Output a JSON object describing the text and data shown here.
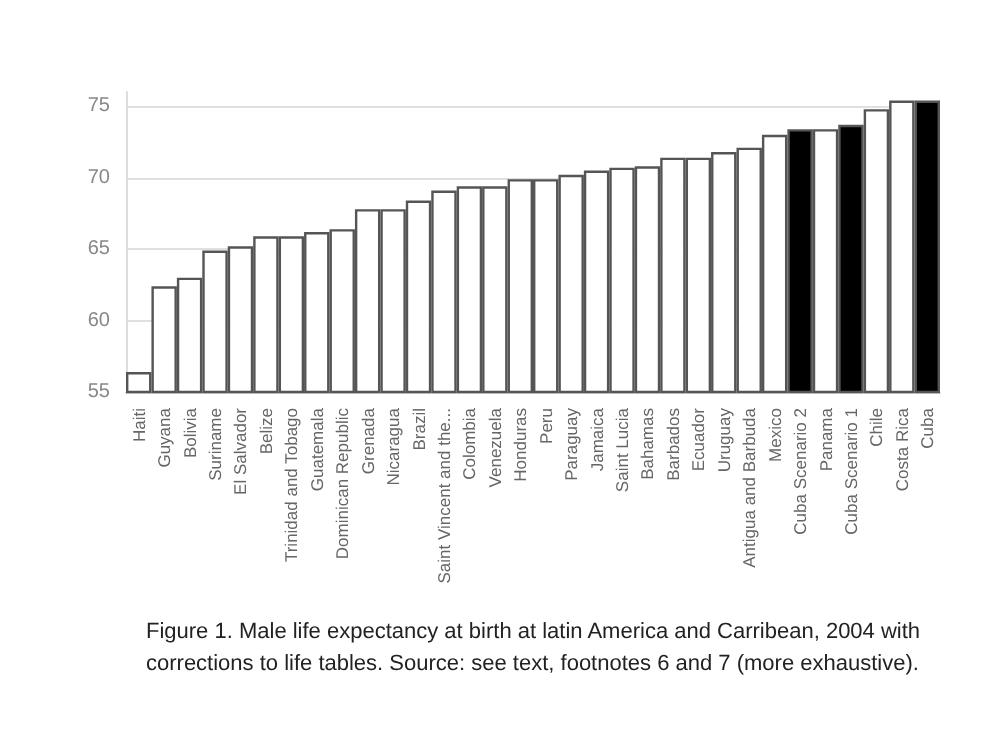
{
  "chart_data": {
    "type": "bar",
    "categories": [
      "Haiti",
      "Guyana",
      "Bolivia",
      "Suriname",
      "El Salvador",
      "Belize",
      "Trinidad and Tobago",
      "Guatemala",
      "Dominican Republic",
      "Grenada",
      "Nicaragua",
      "Brazil",
      "Saint Vincent and the...",
      "Colombia",
      "Venezuela",
      "Honduras",
      "Peru",
      "Paraguay",
      "Jamaica",
      "Saint Lucia",
      "Bahamas",
      "Barbados",
      "Ecuador",
      "Uruguay",
      "Antigua and Barbuda",
      "Mexico",
      "Cuba Scenario 2",
      "Panama",
      "Cuba Scenario 1",
      "Chile",
      "Costa Rica",
      "Cuba"
    ],
    "values": [
      56.4,
      62.4,
      63.0,
      64.9,
      65.2,
      65.9,
      65.9,
      66.2,
      66.4,
      67.8,
      67.8,
      68.4,
      69.1,
      69.4,
      69.4,
      69.9,
      69.9,
      70.2,
      70.5,
      70.7,
      70.8,
      71.4,
      71.4,
      71.8,
      72.1,
      73.0,
      73.4,
      73.4,
      73.7,
      74.8,
      75.4,
      75.4
    ],
    "colors": [
      "#ffffff",
      "#ffffff",
      "#ffffff",
      "#ffffff",
      "#ffffff",
      "#ffffff",
      "#ffffff",
      "#ffffff",
      "#ffffff",
      "#ffffff",
      "#ffffff",
      "#ffffff",
      "#ffffff",
      "#ffffff",
      "#ffffff",
      "#ffffff",
      "#ffffff",
      "#ffffff",
      "#ffffff",
      "#ffffff",
      "#ffffff",
      "#ffffff",
      "#ffffff",
      "#ffffff",
      "#ffffff",
      "#ffffff",
      "#000000",
      "#ffffff",
      "#000000",
      "#ffffff",
      "#ffffff",
      "#000000"
    ],
    "ylim": [
      55,
      76
    ],
    "yticks": [
      55,
      60,
      65,
      70,
      75
    ],
    "grid": "y",
    "annotations": [
      "Figure 1. Male life expectancy at birth at latin America and Carribean, 2004 with corrections to life tables. Source: see text, footnotes 6 and 7 (more exhaustive)."
    ]
  }
}
